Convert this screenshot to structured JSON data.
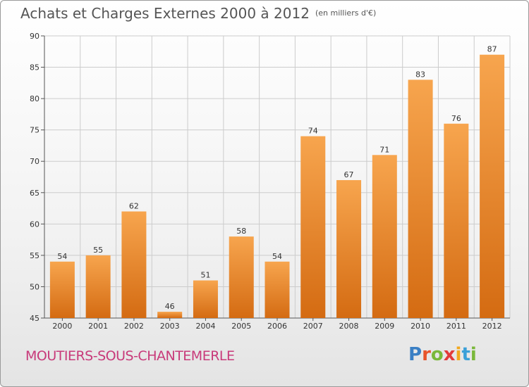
{
  "header": {
    "title": "Achats et Charges Externes 2000 à 2012",
    "unit": "(en milliers d'€)"
  },
  "footer": {
    "place": "MOUTIERS-SOUS-CHANTEMERLE",
    "logo_letters": [
      "P",
      "r",
      "o",
      "x",
      "i",
      "t",
      "i"
    ],
    "logo_colors": [
      "#3a7fc4",
      "#e8542a",
      "#7ab83a",
      "#e23a3a",
      "#f2a81e",
      "#3aa0d8",
      "#7ab83a"
    ]
  },
  "colors": {
    "bar_light": "#f7a54e",
    "bar_dark": "#d46b12",
    "grid": "#cccccc"
  },
  "chart_data": {
    "type": "bar",
    "title": "Achats et Charges Externes 2000 à 2012",
    "xlabel": "",
    "ylabel": "",
    "categories": [
      "2000",
      "2001",
      "2002",
      "2003",
      "2004",
      "2005",
      "2006",
      "2007",
      "2008",
      "2009",
      "2010",
      "2011",
      "2012"
    ],
    "values": [
      54,
      55,
      62,
      46,
      51,
      58,
      54,
      74,
      67,
      71,
      83,
      76,
      87
    ],
    "ylim": [
      45,
      90
    ],
    "yticks": [
      45,
      50,
      55,
      60,
      65,
      70,
      75,
      80,
      85,
      90
    ],
    "grid": true,
    "legend": "none"
  }
}
